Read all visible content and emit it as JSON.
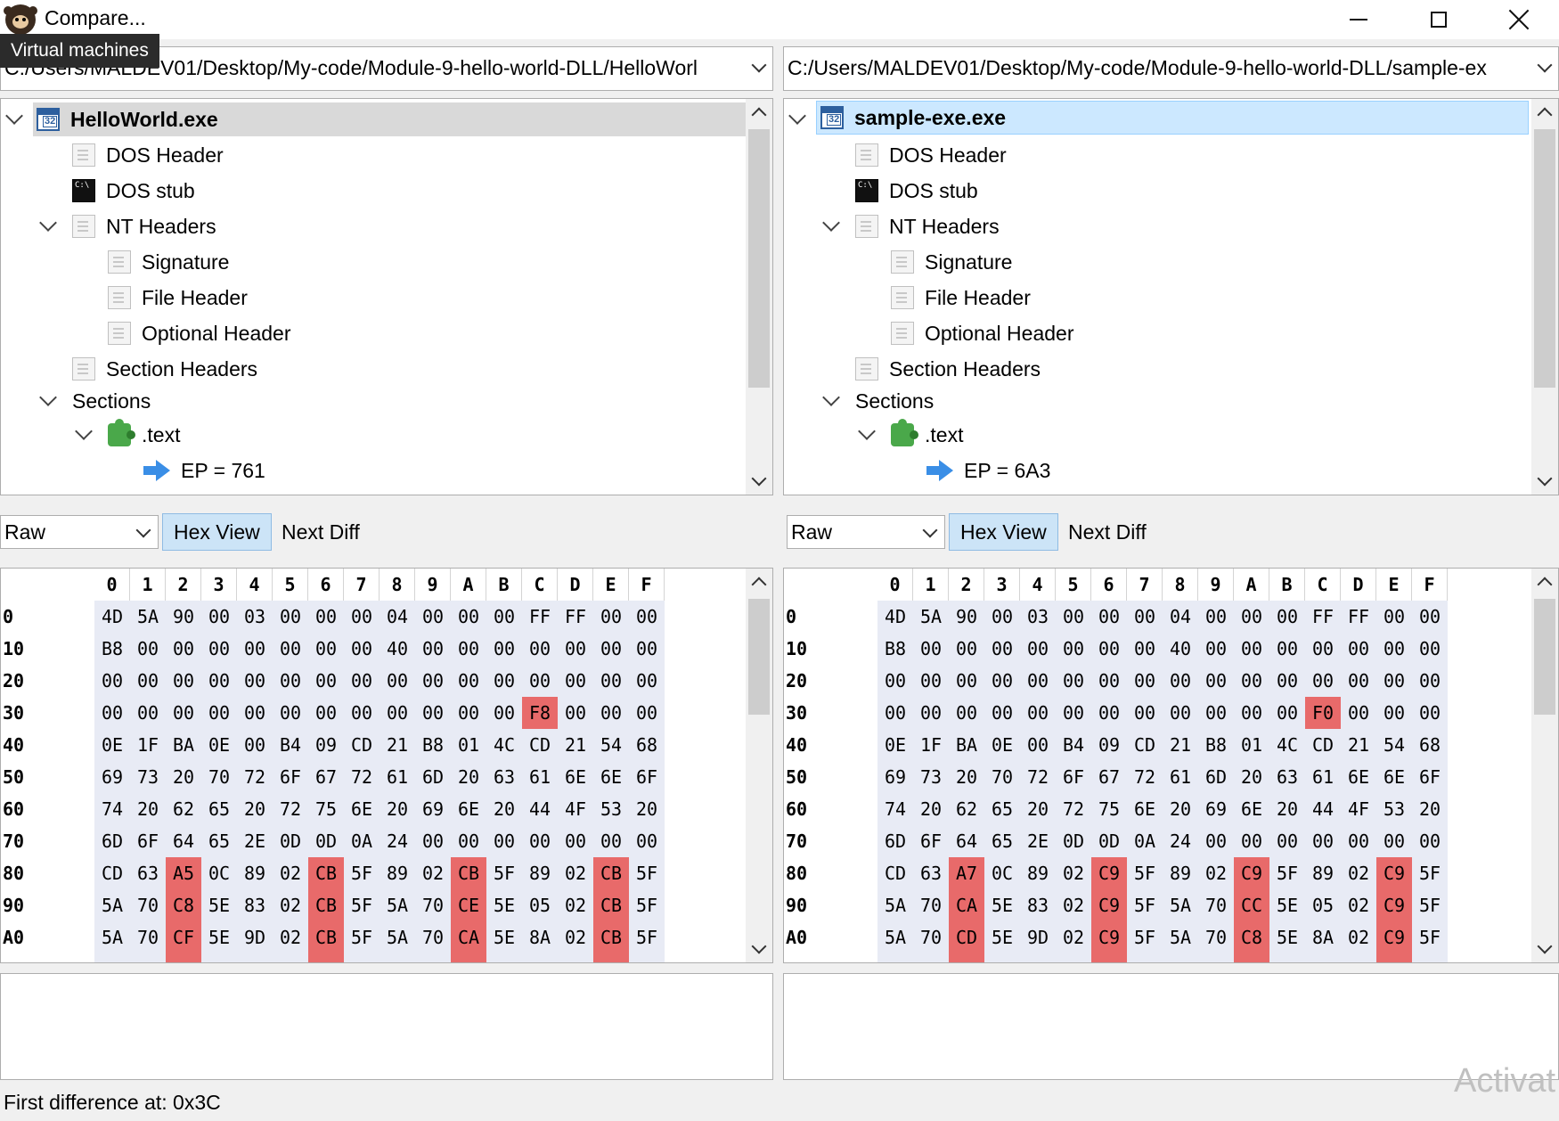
{
  "window": {
    "title": "Compare..."
  },
  "tooltip": "Virtual machines",
  "left": {
    "path": "C:/Users/MALDEV01/Desktop/My-code/Module-9-hello-world-DLL/HelloWorl",
    "tree": {
      "root": "HelloWorld.exe",
      "dos_header": "DOS Header",
      "dos_stub": "DOS stub",
      "nt_headers": "NT Headers",
      "signature": "Signature",
      "file_header": "File Header",
      "optional_header": "Optional Header",
      "section_headers": "Section Headers",
      "sections": "Sections",
      "text_section": ".text",
      "ep": "EP = 761"
    },
    "view_mode": "Raw",
    "hex_view_label": "Hex View",
    "next_diff_label": "Next Diff",
    "rows": [
      {
        "addr": "0",
        "bytes": [
          "4D",
          "5A",
          "90",
          "00",
          "03",
          "00",
          "00",
          "00",
          "04",
          "00",
          "00",
          "00",
          "FF",
          "FF",
          "00",
          "00"
        ]
      },
      {
        "addr": "10",
        "bytes": [
          "B8",
          "00",
          "00",
          "00",
          "00",
          "00",
          "00",
          "00",
          "40",
          "00",
          "00",
          "00",
          "00",
          "00",
          "00",
          "00"
        ]
      },
      {
        "addr": "20",
        "bytes": [
          "00",
          "00",
          "00",
          "00",
          "00",
          "00",
          "00",
          "00",
          "00",
          "00",
          "00",
          "00",
          "00",
          "00",
          "00",
          "00"
        ]
      },
      {
        "addr": "30",
        "bytes": [
          "00",
          "00",
          "00",
          "00",
          "00",
          "00",
          "00",
          "00",
          "00",
          "00",
          "00",
          "00",
          "F8",
          "00",
          "00",
          "00"
        ]
      },
      {
        "addr": "40",
        "bytes": [
          "0E",
          "1F",
          "BA",
          "0E",
          "00",
          "B4",
          "09",
          "CD",
          "21",
          "B8",
          "01",
          "4C",
          "CD",
          "21",
          "54",
          "68"
        ]
      },
      {
        "addr": "50",
        "bytes": [
          "69",
          "73",
          "20",
          "70",
          "72",
          "6F",
          "67",
          "72",
          "61",
          "6D",
          "20",
          "63",
          "61",
          "6E",
          "6E",
          "6F"
        ]
      },
      {
        "addr": "60",
        "bytes": [
          "74",
          "20",
          "62",
          "65",
          "20",
          "72",
          "75",
          "6E",
          "20",
          "69",
          "6E",
          "20",
          "44",
          "4F",
          "53",
          "20"
        ]
      },
      {
        "addr": "70",
        "bytes": [
          "6D",
          "6F",
          "64",
          "65",
          "2E",
          "0D",
          "0D",
          "0A",
          "24",
          "00",
          "00",
          "00",
          "00",
          "00",
          "00",
          "00"
        ]
      },
      {
        "addr": "80",
        "bytes": [
          "CD",
          "63",
          "A5",
          "0C",
          "89",
          "02",
          "CB",
          "5F",
          "89",
          "02",
          "CB",
          "5F",
          "89",
          "02",
          "CB",
          "5F"
        ]
      },
      {
        "addr": "90",
        "bytes": [
          "5A",
          "70",
          "C8",
          "5E",
          "83",
          "02",
          "CB",
          "5F",
          "5A",
          "70",
          "CE",
          "5E",
          "05",
          "02",
          "CB",
          "5F"
        ]
      },
      {
        "addr": "A0",
        "bytes": [
          "5A",
          "70",
          "CF",
          "5E",
          "9D",
          "02",
          "CB",
          "5F",
          "5A",
          "70",
          "CA",
          "5E",
          "8A",
          "02",
          "CB",
          "5F"
        ]
      }
    ]
  },
  "right": {
    "path": "C:/Users/MALDEV01/Desktop/My-code/Module-9-hello-world-DLL/sample-ex",
    "tree": {
      "root": "sample-exe.exe",
      "dos_header": "DOS Header",
      "dos_stub": "DOS stub",
      "nt_headers": "NT Headers",
      "signature": "Signature",
      "file_header": "File Header",
      "optional_header": "Optional Header",
      "section_headers": "Section Headers",
      "sections": "Sections",
      "text_section": ".text",
      "ep": "EP = 6A3"
    },
    "view_mode": "Raw",
    "hex_view_label": "Hex View",
    "next_diff_label": "Next Diff",
    "rows": [
      {
        "addr": "0",
        "bytes": [
          "4D",
          "5A",
          "90",
          "00",
          "03",
          "00",
          "00",
          "00",
          "04",
          "00",
          "00",
          "00",
          "FF",
          "FF",
          "00",
          "00"
        ]
      },
      {
        "addr": "10",
        "bytes": [
          "B8",
          "00",
          "00",
          "00",
          "00",
          "00",
          "00",
          "00",
          "40",
          "00",
          "00",
          "00",
          "00",
          "00",
          "00",
          "00"
        ]
      },
      {
        "addr": "20",
        "bytes": [
          "00",
          "00",
          "00",
          "00",
          "00",
          "00",
          "00",
          "00",
          "00",
          "00",
          "00",
          "00",
          "00",
          "00",
          "00",
          "00"
        ]
      },
      {
        "addr": "30",
        "bytes": [
          "00",
          "00",
          "00",
          "00",
          "00",
          "00",
          "00",
          "00",
          "00",
          "00",
          "00",
          "00",
          "F0",
          "00",
          "00",
          "00"
        ]
      },
      {
        "addr": "40",
        "bytes": [
          "0E",
          "1F",
          "BA",
          "0E",
          "00",
          "B4",
          "09",
          "CD",
          "21",
          "B8",
          "01",
          "4C",
          "CD",
          "21",
          "54",
          "68"
        ]
      },
      {
        "addr": "50",
        "bytes": [
          "69",
          "73",
          "20",
          "70",
          "72",
          "6F",
          "67",
          "72",
          "61",
          "6D",
          "20",
          "63",
          "61",
          "6E",
          "6E",
          "6F"
        ]
      },
      {
        "addr": "60",
        "bytes": [
          "74",
          "20",
          "62",
          "65",
          "20",
          "72",
          "75",
          "6E",
          "20",
          "69",
          "6E",
          "20",
          "44",
          "4F",
          "53",
          "20"
        ]
      },
      {
        "addr": "70",
        "bytes": [
          "6D",
          "6F",
          "64",
          "65",
          "2E",
          "0D",
          "0D",
          "0A",
          "24",
          "00",
          "00",
          "00",
          "00",
          "00",
          "00",
          "00"
        ]
      },
      {
        "addr": "80",
        "bytes": [
          "CD",
          "63",
          "A7",
          "0C",
          "89",
          "02",
          "C9",
          "5F",
          "89",
          "02",
          "C9",
          "5F",
          "89",
          "02",
          "C9",
          "5F"
        ]
      },
      {
        "addr": "90",
        "bytes": [
          "5A",
          "70",
          "CA",
          "5E",
          "83",
          "02",
          "C9",
          "5F",
          "5A",
          "70",
          "CC",
          "5E",
          "05",
          "02",
          "C9",
          "5F"
        ]
      },
      {
        "addr": "A0",
        "bytes": [
          "5A",
          "70",
          "CD",
          "5E",
          "9D",
          "02",
          "C9",
          "5F",
          "5A",
          "70",
          "C8",
          "5E",
          "8A",
          "02",
          "C9",
          "5F"
        ]
      }
    ]
  },
  "hex_columns": [
    "0",
    "1",
    "2",
    "3",
    "4",
    "5",
    "6",
    "7",
    "8",
    "9",
    "A",
    "B",
    "C",
    "D",
    "E",
    "F"
  ],
  "diff_columns": [
    2,
    6,
    10,
    14
  ],
  "status": "First difference at: 0x3C",
  "watermark": "Activat",
  "colors": {
    "diff": "#e86a6a",
    "selection": "#cce8ff",
    "hex_bg": "#e8ebf5"
  }
}
